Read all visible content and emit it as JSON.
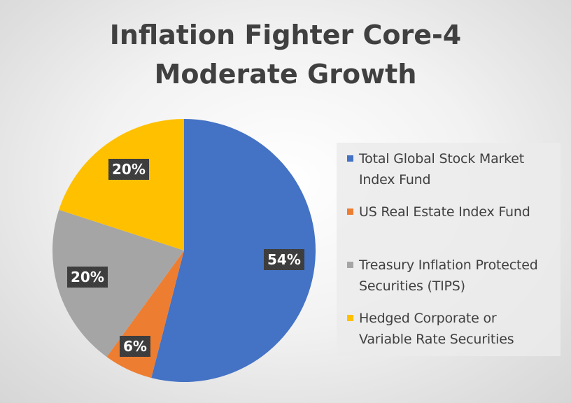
{
  "chart_data": {
    "type": "pie",
    "title_lines": [
      "Inflation Fighter Core-4",
      "Moderate Growth"
    ],
    "slices": [
      {
        "name": "Total Global Stock Market Index Fund",
        "legend_lines": [
          "Total Global Stock Market",
          "Index Fund"
        ],
        "value": 54,
        "label": "54%",
        "color": "#4472C4"
      },
      {
        "name": "US Real Estate Index Fund",
        "legend_lines": [
          "US Real Estate Index Fund"
        ],
        "value": 6,
        "label": "6%",
        "color": "#ED7D31"
      },
      {
        "name": "Treasury Inflation Protected Securities (TIPS)",
        "legend_lines": [
          "Treasury Inflation Protected",
          "Securities (TIPS)"
        ],
        "value": 20,
        "label": "20%",
        "color": "#A5A5A5"
      },
      {
        "name": "Hedged Corporate or Variable Rate Securities",
        "legend_lines": [
          "Hedged Corporate or",
          "Variable Rate Securities"
        ],
        "value": 20,
        "label": "20%",
        "color": "#FFC000"
      }
    ],
    "start_angle": "12 o'clock",
    "direction": "clockwise",
    "legend_position": "right"
  }
}
